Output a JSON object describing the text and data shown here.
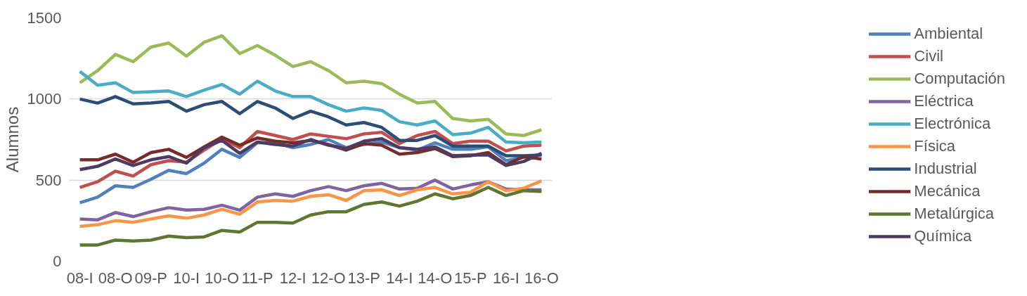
{
  "chart_data": {
    "type": "line",
    "ylabel": "Alumnos",
    "categories": [
      "08-I",
      null,
      "08-O",
      null,
      "09-P",
      null,
      "10-I",
      null,
      "10-O",
      null,
      "11-P",
      null,
      "12-I",
      null,
      "12-O",
      null,
      "13-P",
      null,
      "14-I",
      null,
      "14-O",
      null,
      "15-P",
      null,
      "16-I",
      null,
      "16-O"
    ],
    "ylim": [
      0,
      1500
    ],
    "yticks": [
      0,
      500,
      1000,
      1500
    ],
    "grid": "y",
    "legend": "right",
    "marker": "none",
    "line_style": "solid",
    "series": [
      {
        "name": "Ambiental",
        "color": "#4f81bd",
        "values": [
          360,
          395,
          465,
          455,
          505,
          560,
          540,
          605,
          690,
          640,
          730,
          730,
          700,
          720,
          750,
          700,
          720,
          735,
          700,
          685,
          730,
          690,
          690,
          705,
          620,
          640,
          660
        ]
      },
      {
        "name": "Civil",
        "color": "#c0504d",
        "values": [
          455,
          490,
          555,
          525,
          595,
          620,
          610,
          685,
          755,
          700,
          800,
          775,
          750,
          785,
          770,
          755,
          785,
          795,
          725,
          775,
          800,
          725,
          740,
          740,
          680,
          710,
          715
        ]
      },
      {
        "name": "Computación",
        "color": "#9bbb59",
        "values": [
          1100,
          1175,
          1275,
          1230,
          1320,
          1345,
          1265,
          1350,
          1390,
          1280,
          1330,
          1270,
          1200,
          1230,
          1175,
          1100,
          1110,
          1095,
          1030,
          975,
          985,
          880,
          865,
          875,
          785,
          775,
          810
        ]
      },
      {
        "name": "Eléctrica",
        "color": "#8064a2",
        "values": [
          260,
          255,
          300,
          275,
          305,
          330,
          315,
          320,
          345,
          315,
          395,
          415,
          400,
          435,
          460,
          435,
          465,
          480,
          445,
          450,
          500,
          445,
          470,
          490,
          445,
          440,
          440
        ]
      },
      {
        "name": "Electrónica",
        "color": "#4bacc6",
        "values": [
          1170,
          1085,
          1100,
          1040,
          1045,
          1050,
          1015,
          1055,
          1090,
          1030,
          1110,
          1050,
          1015,
          1015,
          965,
          925,
          945,
          930,
          860,
          840,
          865,
          780,
          790,
          825,
          735,
          730,
          735
        ]
      },
      {
        "name": "Física",
        "color": "#f79646",
        "values": [
          215,
          225,
          250,
          240,
          260,
          280,
          265,
          285,
          320,
          290,
          365,
          375,
          370,
          400,
          410,
          375,
          435,
          440,
          405,
          440,
          455,
          415,
          425,
          490,
          435,
          450,
          495
        ]
      },
      {
        "name": "Industrial",
        "color": "#2c4d75",
        "values": [
          1000,
          975,
          1015,
          970,
          975,
          985,
          925,
          965,
          985,
          910,
          985,
          945,
          880,
          925,
          890,
          840,
          855,
          825,
          745,
          745,
          775,
          710,
          710,
          710,
          650,
          650,
          655
        ]
      },
      {
        "name": "Mecánica",
        "color": "#772c2a",
        "values": [
          625,
          625,
          660,
          610,
          670,
          690,
          640,
          705,
          765,
          715,
          760,
          740,
          730,
          745,
          720,
          685,
          725,
          715,
          660,
          670,
          695,
          645,
          650,
          670,
          595,
          645,
          630
        ]
      },
      {
        "name": "Metalúrgica",
        "color": "#5f7530",
        "values": [
          100,
          100,
          130,
          125,
          130,
          155,
          145,
          150,
          190,
          180,
          240,
          240,
          235,
          285,
          305,
          305,
          350,
          365,
          340,
          370,
          415,
          385,
          405,
          455,
          405,
          435,
          430
        ]
      },
      {
        "name": "Química",
        "color": "#4d3b62",
        "values": [
          565,
          585,
          630,
          590,
          625,
          645,
          605,
          700,
          745,
          665,
          735,
          720,
          710,
          750,
          715,
          695,
          740,
          755,
          700,
          690,
          705,
          650,
          655,
          655,
          590,
          615,
          665
        ]
      }
    ]
  }
}
